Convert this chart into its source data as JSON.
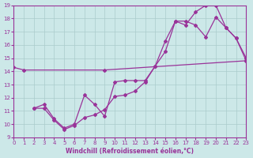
{
  "bg_color": "#cce8e8",
  "grid_color": "#aacccc",
  "line_color": "#993399",
  "xlabel": "Windchill (Refroidissement éolien,°C)",
  "xlim": [
    0,
    23
  ],
  "ylim": [
    9,
    19
  ],
  "xticks": [
    0,
    1,
    2,
    3,
    4,
    5,
    6,
    7,
    8,
    9,
    10,
    11,
    12,
    13,
    14,
    15,
    16,
    17,
    18,
    19,
    20,
    21,
    22,
    23
  ],
  "yticks": [
    9,
    10,
    11,
    12,
    13,
    14,
    15,
    16,
    17,
    18,
    19
  ],
  "line1_x": [
    0,
    1,
    9,
    23
  ],
  "line1_y": [
    14.3,
    14.1,
    14.1,
    14.8
  ],
  "line2_x": [
    2,
    3,
    4,
    5,
    6,
    7,
    8,
    9,
    10,
    11,
    12,
    13,
    14,
    15,
    16,
    17,
    18,
    19,
    20,
    21,
    22,
    23
  ],
  "line2_y": [
    11.2,
    11.2,
    10.3,
    9.6,
    9.9,
    10.5,
    10.7,
    11.1,
    12.1,
    12.2,
    12.5,
    13.2,
    14.4,
    16.3,
    17.8,
    17.5,
    18.5,
    19.0,
    19.0,
    17.3,
    16.5,
    15.0
  ],
  "line3_x": [
    2,
    3,
    4,
    5,
    6,
    7,
    8,
    9,
    10,
    11,
    12,
    13,
    14,
    15,
    16,
    17,
    18,
    19,
    20,
    21,
    22,
    23
  ],
  "line3_y": [
    11.2,
    11.5,
    10.4,
    9.7,
    10.0,
    12.2,
    11.5,
    10.6,
    13.2,
    13.3,
    13.3,
    13.3,
    14.4,
    15.5,
    17.8,
    17.8,
    17.5,
    16.6,
    18.1,
    17.3,
    16.5,
    14.8
  ]
}
